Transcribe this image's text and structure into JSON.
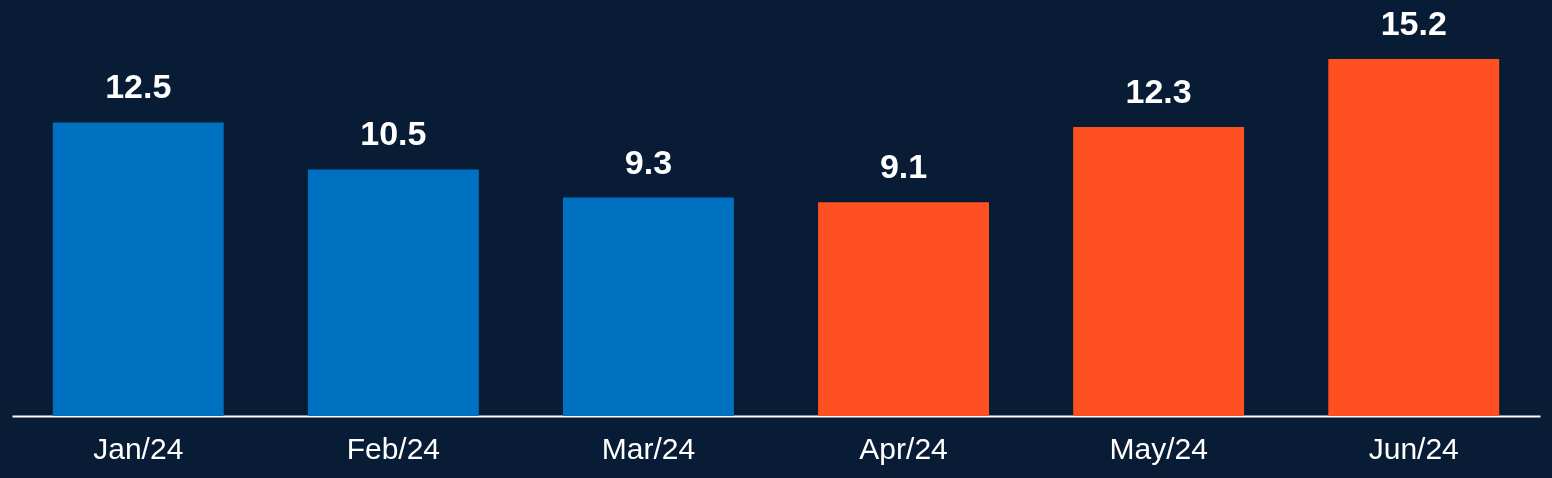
{
  "chart_data": {
    "type": "bar",
    "categories": [
      "Jan/24",
      "Feb/24",
      "Mar/24",
      "Apr/24",
      "May/24",
      "Jun/24"
    ],
    "values": [
      12.5,
      10.5,
      9.3,
      9.1,
      12.3,
      15.2
    ],
    "colors": [
      "#0070c0",
      "#0070c0",
      "#0070c0",
      "#ff5022",
      "#ff5022",
      "#ff5022"
    ],
    "data_labels": true
  }
}
